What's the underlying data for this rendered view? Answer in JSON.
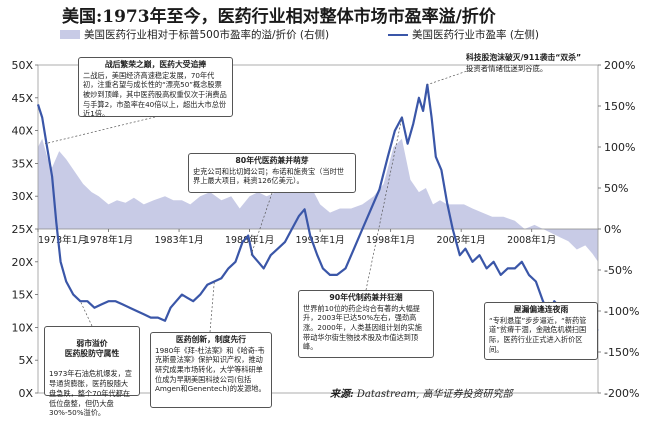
{
  "title": "美国:1973年至今，医药行业相对整体市场市盈率溢/折价",
  "legend": {
    "area_label": "美国医药行业相对于标普500市盈率的溢/折价 (右侧)",
    "line_label": "美国医药行业市盈率 (左侧)"
  },
  "colors": {
    "area": "#c8cbe6",
    "line": "#3a56a8",
    "box_border": "#555555"
  },
  "source": {
    "prefix": "来源:",
    "text": " Datastream, 高华证券投资研究部"
  },
  "annotations": [
    {
      "id": "a1",
      "head": "战后繁荣之巅，医药大受追捧",
      "body": "二战后，美国经济高速稳定发展，70年代初，注重名望与成长性的“漂亮50”概念股票被炒到顶峰，其中医药股高权重仅次于消费品与手算2，市盈率在40倍以上，超出大市总份近1倍。"
    },
    {
      "id": "a2",
      "head": "80年代医药兼并萌芽",
      "body": "史克公司和比切姆公司；布诺和施贵宝（当时世界上最大项目，耗资126亿美元）。"
    },
    {
      "id": "a3",
      "head": "科技股泡沫破灭/911袭击“双杀”",
      "body": "投资者情绪低迷到谷底。"
    },
    {
      "id": "a4",
      "head": "90年代制药兼并狂潮",
      "body": "世界前10位的药企均合有著的大幅提升，2003年已达50%左右，强劲高涨。2000年，人类基因组计划的实施带动华尔街生物技术股及市值达到顶峰。"
    },
    {
      "id": "a5",
      "head": "弱市溢价\n医药股防守属性",
      "body": "1973年石油危机爆发，宣导通货膨胀，医药股随大盘急跌，整个70年代都在低位盘整，但仍大盘30%-50%溢价。"
    },
    {
      "id": "a6",
      "head": "医药创新，制度先行",
      "body": "1980年《拜-杜法案》和《哈奇-韦克斯曼法案》保护知识产权，推动研究成果市场转化，大学等科研单位成为早期美国科技公司(包括Amgen和Genentech)的发源地。"
    },
    {
      "id": "a7",
      "head": "屋漏偏逢连夜雨",
      "body": "“专利悬崖”步步逼近，“新药管道”贫瘠干涸，金融危机横扫国际，医药行业正式进入折价区间。"
    }
  ],
  "chart_data": {
    "type": "line",
    "x_unit": "year",
    "left_axis": {
      "ticks": [
        "0X",
        "5X",
        "10X",
        "15X",
        "20X",
        "25X",
        "30X",
        "35X",
        "40X",
        "45X",
        "50X"
      ],
      "range": [
        0,
        50
      ]
    },
    "right_axis": {
      "ticks": [
        "-200%",
        "-150%",
        "-100%",
        "-50%",
        "0%",
        "50%",
        "100%",
        "150%",
        "200%"
      ],
      "range": [
        -200,
        200
      ]
    },
    "x_tick_labels": [
      "1973年1月",
      "1978年1月",
      "1983年1月",
      "1988年1月",
      "1993年1月",
      "1998年1月",
      "2003年1月",
      "2008年1月"
    ],
    "x_tick_years": [
      1973,
      1978,
      1983,
      1988,
      1993,
      1998,
      2003,
      2008
    ],
    "x_range": [
      1973.0,
      2012.7
    ],
    "series": [
      {
        "name": "美国医药行业相对于标普500市盈率的溢/折价 (右侧)",
        "kind": "area",
        "axis": "right",
        "x": [
          1973.0,
          1973.3,
          1973.7,
          1974.0,
          1974.5,
          1975.0,
          1975.6,
          1976.2,
          1976.8,
          1977.3,
          1978.0,
          1978.6,
          1979.2,
          1979.8,
          1980.5,
          1981.2,
          1982.0,
          1982.6,
          1983.2,
          1983.8,
          1984.5,
          1985.2,
          1986.0,
          1986.7,
          1987.3,
          1988.0,
          1988.6,
          1989.2,
          1989.9,
          1990.6,
          1991.2,
          1991.9,
          1992.4,
          1993.0,
          1993.7,
          1994.4,
          1995.2,
          1996.0,
          1996.8,
          1997.5,
          1998.2,
          1998.8,
          1999.4,
          2000.0,
          2000.5,
          2001.0,
          2001.5,
          2002.0,
          2002.6,
          2003.2,
          2003.8,
          2004.5,
          2005.2,
          2006.0,
          2006.8,
          2007.5,
          2008.2,
          2008.8,
          2009.4,
          2010.0,
          2010.6,
          2011.2,
          2011.8,
          2012.3,
          2012.7
        ],
        "values": [
          100,
          110,
          85,
          75,
          95,
          85,
          70,
          55,
          45,
          40,
          30,
          35,
          32,
          38,
          30,
          35,
          40,
          35,
          35,
          30,
          40,
          45,
          35,
          40,
          25,
          40,
          45,
          40,
          45,
          55,
          60,
          70,
          50,
          30,
          20,
          25,
          25,
          30,
          40,
          55,
          100,
          110,
          60,
          45,
          50,
          30,
          35,
          30,
          30,
          30,
          25,
          20,
          15,
          15,
          10,
          0,
          5,
          0,
          -5,
          -10,
          -15,
          -25,
          -20,
          -30,
          -40
        ]
      },
      {
        "name": "美国医药行业市盈率 (左侧)",
        "kind": "line",
        "axis": "left",
        "x": [
          1973.0,
          1973.3,
          1973.6,
          1974.0,
          1974.3,
          1974.6,
          1975.0,
          1975.5,
          1976.0,
          1976.5,
          1977.0,
          1977.5,
          1978.0,
          1978.5,
          1979.0,
          1979.5,
          1980.0,
          1980.5,
          1981.0,
          1981.5,
          1982.0,
          1982.4,
          1982.8,
          1983.2,
          1983.6,
          1984.0,
          1984.5,
          1985.0,
          1985.5,
          1986.0,
          1986.5,
          1987.0,
          1987.5,
          1987.9,
          1988.2,
          1988.6,
          1989.0,
          1989.5,
          1990.0,
          1990.5,
          1991.0,
          1991.5,
          1991.9,
          1992.3,
          1992.8,
          1993.2,
          1993.7,
          1994.2,
          1994.8,
          1995.4,
          1996.0,
          1996.6,
          1997.2,
          1997.8,
          1998.3,
          1998.8,
          1999.2,
          1999.6,
          2000.0,
          2000.3,
          2000.6,
          2000.9,
          2001.2,
          2001.6,
          2002.0,
          2002.4,
          2002.9,
          2003.3,
          2003.8,
          2004.3,
          2004.8,
          2005.3,
          2005.8,
          2006.3,
          2006.8,
          2007.3,
          2007.8,
          2008.3,
          2008.8,
          2009.2,
          2009.6,
          2010.0,
          2010.5,
          2011.0,
          2011.5,
          2012.0,
          2012.4,
          2012.7
        ],
        "values": [
          44,
          42,
          38,
          33,
          26,
          20,
          17,
          15,
          14,
          14,
          13,
          13.5,
          14,
          14,
          13.5,
          13,
          12.5,
          12,
          11.5,
          11.5,
          11,
          13,
          14,
          15,
          14.5,
          14,
          15,
          16.5,
          17,
          17.5,
          19,
          20,
          23,
          24,
          21,
          20,
          19,
          21,
          22,
          23,
          25,
          27,
          28,
          24,
          21,
          19,
          18,
          18,
          19,
          22,
          25,
          28,
          31,
          36,
          40,
          42,
          38,
          41,
          45,
          43,
          47,
          42,
          36,
          34,
          29,
          25,
          21,
          22,
          20,
          21,
          19,
          20,
          18,
          19,
          19,
          20,
          18,
          17,
          14,
          12,
          14,
          13,
          12,
          11,
          10.5,
          10,
          10,
          9.5
        ]
      }
    ]
  }
}
